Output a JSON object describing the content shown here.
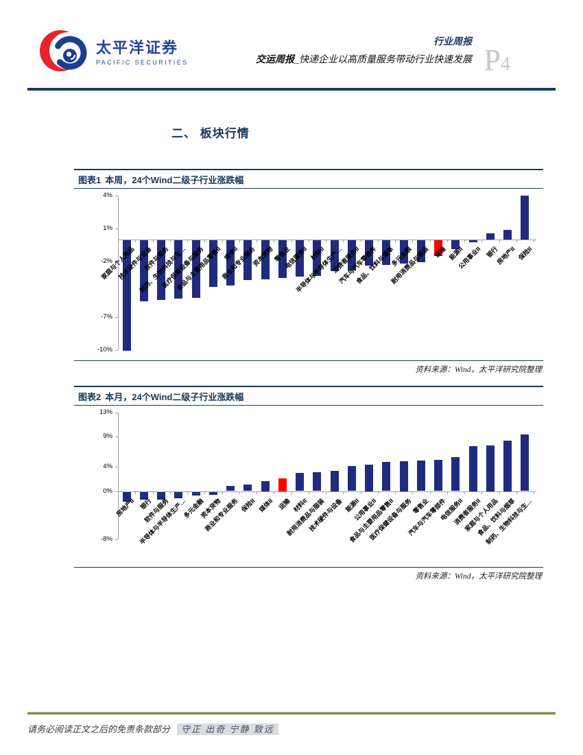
{
  "header": {
    "logo": {
      "cn": "太平洋证券",
      "en": "PACIFIC SECURITIES"
    },
    "report_type": "行业周报",
    "title_bold": "交运周报",
    "title_rest": "_快递企业以高质量服务带动行业快速发展",
    "page_letter": "P",
    "page_number": "4"
  },
  "section_title": "二、 板块行情",
  "source_note": "资料来源：Wind，太平洋研究院整理",
  "footer": {
    "disclaimer": "请务必阅读正文之后的免责条款部分",
    "motto": "守正 出奇 宁静 致远"
  },
  "colors": {
    "navy_text": "#17375E",
    "bar_navy": "#1F2C7E",
    "bar_red": "#FF0000",
    "brand_blue": "#2242A0",
    "brand_red": "#E8232A",
    "header_rule": "#1F3864",
    "footer_rule": "#85854E",
    "page_number_gray": "#C6C6C6",
    "axis_gray": "#A0A0A0"
  },
  "chart_data": [
    {
      "type": "bar",
      "figure_label": "图表1",
      "title": "本周，24个Wind二级子行业涨跌幅",
      "ylim": [
        -10,
        4
      ],
      "yticks": [
        4,
        1,
        -2,
        -7,
        -10
      ],
      "categories": [
        "家庭与个人用品",
        "技术硬件与设备",
        "软件与服务",
        "制药、生物科技与生…",
        "医疗保健设备与服务",
        "食品与主要用品零售II",
        "媒体II",
        "商业和专业服务",
        "资本货物",
        "零售业",
        "电信服务II",
        "材料II",
        "半导体与半导体生产…",
        "消费者服务II",
        "汽车与汽车零部件",
        "食品、饮料与烟草",
        "多元金融",
        "耐用消费品与服装",
        "运输",
        "能源II",
        "公用事业II",
        "银行",
        "房地产II",
        "保险II"
      ],
      "values": [
        -10.2,
        -5.5,
        -5.4,
        -5.3,
        -5.2,
        -4.2,
        -4.1,
        -3.6,
        -3.5,
        -3.4,
        -3.3,
        -3.2,
        -2.8,
        -2.7,
        -2.3,
        -2.2,
        -2.1,
        -2.0,
        -1.4,
        -0.8,
        -0.2,
        0.6,
        0.9,
        4.0
      ],
      "highlight_category": "运输",
      "bar_color": "#1F2C7E",
      "highlight_color": "#FF0000",
      "grid": false,
      "legend": null
    },
    {
      "type": "bar",
      "figure_label": "图表2",
      "title": "本月，24个Wind二级子行业涨跌幅",
      "ylim": [
        -8,
        13
      ],
      "yticks": [
        13,
        9,
        4,
        0,
        -8
      ],
      "categories": [
        "房地产II",
        "银行",
        "软件与服务",
        "半导体与半导体生产…",
        "多元金融",
        "资本货物",
        "商业和专业服务",
        "保险II",
        "媒体II",
        "运输",
        "材料II",
        "耐用消费品与服装",
        "技术硬件与设备",
        "能源II",
        "公用事业II",
        "食品与主要用品零售II",
        "医疗保健设备与服务",
        "零售业",
        "汽车与汽车零部件",
        "电信服务II",
        "消费者服务II",
        "家庭与个人用品",
        "食品、饮料与烟草",
        "制药、生物科技与生…"
      ],
      "values": [
        -1.6,
        -1.3,
        -1.3,
        -1.1,
        -0.6,
        -0.5,
        0.9,
        1.1,
        1.7,
        2.1,
        3.0,
        3.1,
        3.4,
        4.1,
        4.4,
        4.8,
        5.0,
        5.1,
        5.2,
        5.6,
        7.5,
        7.6,
        8.4,
        9.4
      ],
      "highlight_category": "运输",
      "bar_color": "#1F2C7E",
      "highlight_color": "#FF0000",
      "grid": false,
      "legend": null
    }
  ]
}
